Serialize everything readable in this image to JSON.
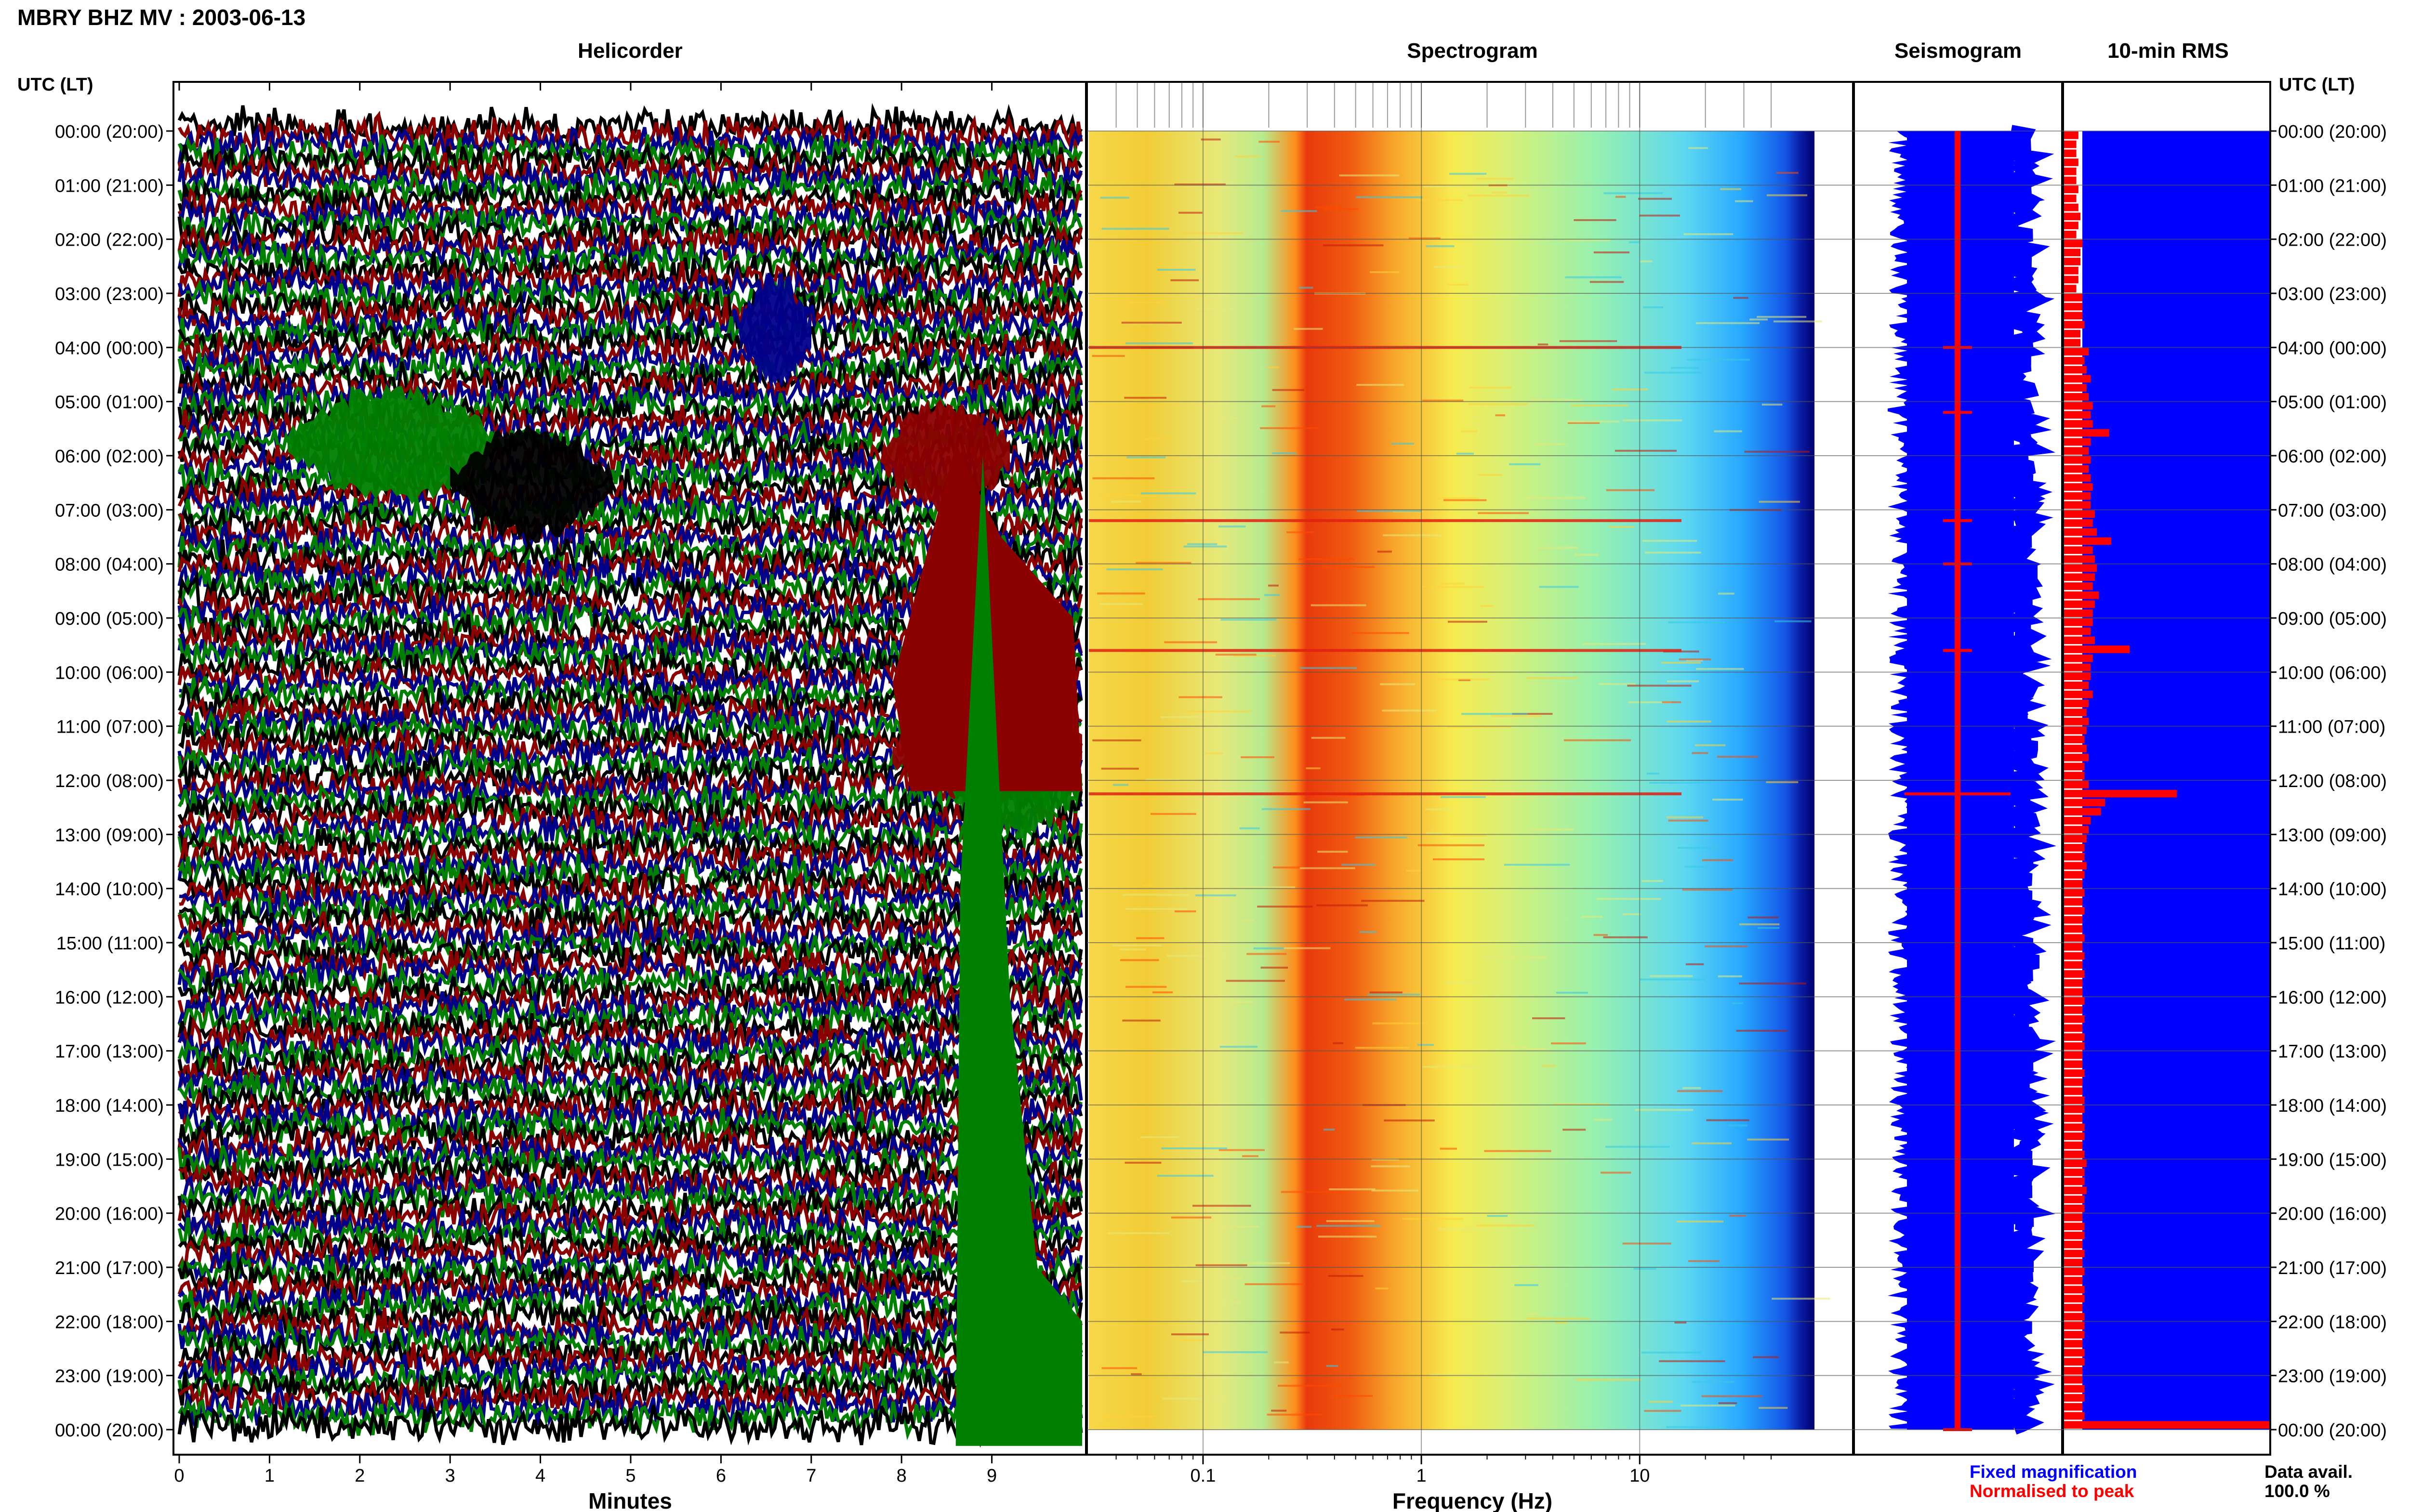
{
  "header": {
    "title": "MBRY BHZ MV : 2003-06-13",
    "panel_titles": [
      "Helicorder",
      "Spectrogram",
      "Seismogram",
      "10-min RMS"
    ],
    "axis_title_left": "UTC (LT)",
    "axis_title_right": "UTC (LT)"
  },
  "time_labels": [
    "00:00 (20:00)",
    "01:00 (21:00)",
    "02:00 (22:00)",
    "03:00 (23:00)",
    "04:00 (00:00)",
    "05:00 (01:00)",
    "06:00 (02:00)",
    "07:00 (03:00)",
    "08:00 (04:00)",
    "09:00 (05:00)",
    "10:00 (06:00)",
    "11:00 (07:00)",
    "12:00 (08:00)",
    "13:00 (09:00)",
    "14:00 (10:00)",
    "15:00 (11:00)",
    "16:00 (12:00)",
    "17:00 (13:00)",
    "18:00 (14:00)",
    "19:00 (15:00)",
    "20:00 (16:00)",
    "21:00 (17:00)",
    "22:00 (18:00)",
    "23:00 (19:00)",
    "00:00 (20:00)"
  ],
  "footer": {
    "legend_fixed": "Fixed magnification",
    "legend_normalised": "Normalised to peak",
    "data_avail_label": "Data avail.",
    "data_avail_value": "100.0 %"
  },
  "colors": {
    "heli_traces": [
      "#000000",
      "#8b0000",
      "#00008b",
      "#008000"
    ],
    "fixed_magnification": "#0000ff",
    "normalised_to_peak": "#ff0000",
    "spectrogram_low": "#000080",
    "spectrogram_high": "#ff0000"
  },
  "chart_data": [
    {
      "type": "line",
      "panel": "helicorder",
      "title": "Helicorder",
      "xlabel": "Minutes",
      "x_ticks": [
        "0",
        "1",
        "2",
        "3",
        "4",
        "5",
        "6",
        "7",
        "8",
        "9"
      ],
      "xlim": [
        0,
        10
      ],
      "rows_per_hour": 6,
      "hours": 24,
      "note_events": [
        {
          "hour": 5.8,
          "minute_start": 1.2,
          "minute_end": 3.5,
          "color": "green"
        },
        {
          "hour": 6.5,
          "minute_start": 3.0,
          "minute_end": 4.8,
          "color": "black"
        },
        {
          "hour": 3.7,
          "minute_start": 6.2,
          "minute_end": 7.0,
          "color": "navy"
        },
        {
          "hour": 6.0,
          "minute_start": 7.8,
          "minute_end": 9.2,
          "color": "darkred"
        },
        {
          "hour": 11.5,
          "minute_start": 7.9,
          "minute_end": 10.0,
          "color": "darkred"
        },
        {
          "hour": 12.0,
          "minute_start": 8.5,
          "minute_end": 10.0,
          "color": "green"
        }
      ]
    },
    {
      "type": "heatmap",
      "panel": "spectrogram",
      "title": "Spectrogram",
      "xlabel": "Frequency (Hz)",
      "x_ticks": [
        "0.1",
        "1",
        "10"
      ],
      "x_scale": "log",
      "xlim": [
        0.03,
        50
      ],
      "hot_band_hz": [
        0.2,
        0.6
      ],
      "bright_rows_hour": [
        12.25,
        9.6,
        7.2,
        4.0
      ]
    },
    {
      "type": "line",
      "panel": "seismogram",
      "title": "Seismogram",
      "series": [
        {
          "name": "Fixed magnification",
          "color": "#0000ff"
        },
        {
          "name": "Normalised to peak",
          "color": "#ff0000"
        }
      ]
    },
    {
      "type": "bar",
      "panel": "10-min RMS",
      "title": "10-min RMS",
      "orientation": "horizontal",
      "relative_values": [
        0.07,
        0.06,
        0.06,
        0.07,
        0.06,
        0.06,
        0.07,
        0.06,
        0.07,
        0.08,
        0.07,
        0.06,
        0.09,
        0.08,
        0.08,
        0.07,
        0.07,
        0.06,
        0.09,
        0.09,
        0.09,
        0.1,
        0.08,
        0.08,
        0.12,
        0.1,
        0.11,
        0.13,
        0.11,
        0.12,
        0.14,
        0.13,
        0.14,
        0.22,
        0.13,
        0.12,
        0.13,
        0.12,
        0.13,
        0.14,
        0.13,
        0.13,
        0.15,
        0.14,
        0.16,
        0.23,
        0.14,
        0.15,
        0.16,
        0.15,
        0.14,
        0.17,
        0.15,
        0.14,
        0.14,
        0.13,
        0.15,
        0.32,
        0.14,
        0.13,
        0.13,
        0.12,
        0.14,
        0.12,
        0.11,
        0.12,
        0.11,
        0.1,
        0.11,
        0.12,
        0.1,
        0.1,
        0.12,
        0.55,
        0.2,
        0.18,
        0.13,
        0.12,
        0.11,
        0.1,
        0.1,
        0.11,
        0.1,
        0.09,
        0.1,
        0.09,
        0.1,
        0.09,
        0.09,
        0.1,
        0.09,
        0.1,
        0.09,
        0.1,
        0.09,
        0.09,
        0.1,
        0.09,
        0.1,
        0.09,
        0.1,
        0.1,
        0.09,
        0.09,
        0.1,
        0.09,
        0.09,
        0.1,
        0.1,
        0.09,
        0.1,
        0.1,
        0.09,
        0.1,
        0.11,
        0.1,
        0.1,
        0.11,
        0.1,
        0.1,
        0.09,
        0.1,
        0.1,
        0.09,
        0.1,
        0.09,
        0.1,
        0.09,
        0.1,
        0.1,
        0.09,
        0.1,
        0.1,
        0.1,
        0.09,
        0.1,
        0.1,
        0.09,
        0.09,
        0.1,
        0.1,
        0.09,
        0.1,
        1.0
      ]
    }
  ]
}
